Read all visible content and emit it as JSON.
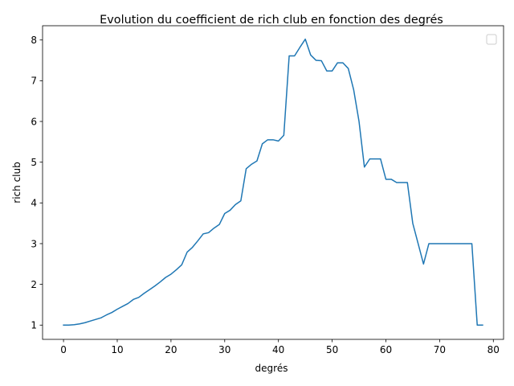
{
  "chart_data": {
    "type": "line",
    "title": "Evolution du coefficient de rich club en fonction des degrés",
    "xlabel": "degrés",
    "ylabel": "rich club",
    "xlim": [
      -3.9,
      81.9
    ],
    "ylim": [
      0.65,
      8.35
    ],
    "xticks": [
      0,
      10,
      20,
      30,
      40,
      50,
      60,
      70,
      80
    ],
    "yticks": [
      1,
      2,
      3,
      4,
      5,
      6,
      7,
      8
    ],
    "grid": false,
    "legend": "top-right (empty)",
    "series": [
      {
        "color": "#1f77b4",
        "x": [
          0,
          1,
          2,
          3,
          4,
          5,
          6,
          7,
          8,
          9,
          10,
          11,
          12,
          13,
          14,
          15,
          16,
          17,
          18,
          19,
          20,
          21,
          22,
          23,
          24,
          25,
          26,
          27,
          28,
          29,
          30,
          31,
          32,
          33,
          34,
          35,
          36,
          37,
          38,
          39,
          40,
          41,
          42,
          43,
          44,
          45,
          46,
          47,
          48,
          49,
          50,
          51,
          52,
          53,
          54,
          55,
          56,
          57,
          58,
          59,
          60,
          61,
          62,
          63,
          64,
          65,
          66,
          67,
          68,
          69,
          70,
          71,
          72,
          73,
          74,
          75,
          76,
          77,
          78
        ],
        "y": [
          1.0,
          1.0,
          1.01,
          1.03,
          1.06,
          1.1,
          1.14,
          1.18,
          1.25,
          1.31,
          1.39,
          1.46,
          1.53,
          1.63,
          1.68,
          1.78,
          1.87,
          1.96,
          2.06,
          2.17,
          2.25,
          2.36,
          2.48,
          2.79,
          2.91,
          3.07,
          3.24,
          3.27,
          3.38,
          3.47,
          3.74,
          3.82,
          3.96,
          4.05,
          4.84,
          4.95,
          5.03,
          5.45,
          5.55,
          5.55,
          5.52,
          5.66,
          7.61,
          7.61,
          7.82,
          8.02,
          7.63,
          7.5,
          7.49,
          7.24,
          7.24,
          7.44,
          7.44,
          7.3,
          6.78,
          6.0,
          4.88,
          5.08,
          5.08,
          5.08,
          4.58,
          4.58,
          4.5,
          4.5,
          4.5,
          3.5,
          3.0,
          2.5,
          3.0,
          3.0,
          3.0,
          3.0,
          3.0,
          3.0,
          3.0,
          3.0,
          3.0,
          1.0,
          1.0
        ]
      }
    ]
  }
}
